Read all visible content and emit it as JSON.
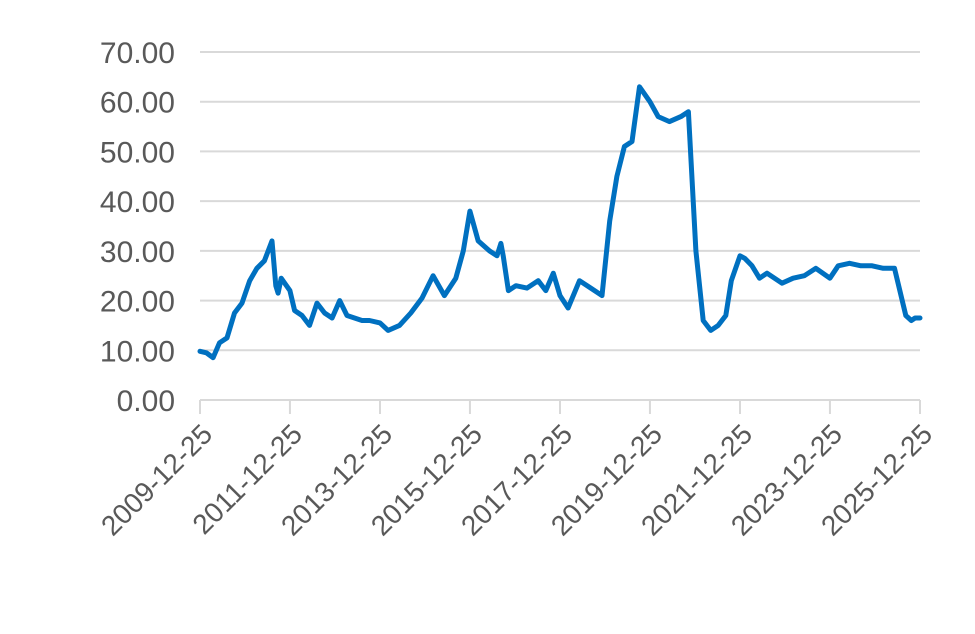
{
  "chart_data": {
    "type": "line",
    "title": "",
    "xlabel": "",
    "ylabel": "",
    "x_tick_labels": [
      "2009-12-25",
      "2011-12-25",
      "2013-12-25",
      "2015-12-25",
      "2017-12-25",
      "2019-12-25",
      "2021-12-25",
      "2023-12-25",
      "2025-12-25"
    ],
    "y_tick_labels": [
      "0.00",
      "10.00",
      "20.00",
      "30.00",
      "40.00",
      "50.00",
      "60.00",
      "70.00"
    ],
    "ylim": [
      0,
      70
    ],
    "xlim": [
      "2009-12-25",
      "2025-12-25"
    ],
    "grid": "horizontal",
    "legend": "none",
    "colors": {
      "series": "#0070c0",
      "grid": "#d9d9d9",
      "tick_text": "#595959"
    },
    "series": [
      {
        "x": [
          "2009-12-25",
          "2010-02-15",
          "2010-04-10",
          "2010-06-01",
          "2010-08-01",
          "2010-10-01",
          "2010-12-01",
          "2011-02-01",
          "2011-04-01",
          "2011-06-01",
          "2011-08-01",
          "2011-09-01",
          "2011-09-20",
          "2011-10-15",
          "2011-12-25",
          "2012-02-01",
          "2012-04-01",
          "2012-06-01",
          "2012-08-01",
          "2012-10-01",
          "2012-12-01",
          "2013-02-01",
          "2013-04-01",
          "2013-06-01",
          "2013-08-01",
          "2013-10-01",
          "2013-12-25",
          "2014-03-01",
          "2014-06-01",
          "2014-09-01",
          "2014-12-01",
          "2015-03-01",
          "2015-06-01",
          "2015-09-01",
          "2015-11-01",
          "2015-12-25",
          "2016-03-01",
          "2016-06-01",
          "2016-08-01",
          "2016-09-01",
          "2016-09-20",
          "2016-11-01",
          "2017-01-01",
          "2017-04-01",
          "2017-07-01",
          "2017-09-01",
          "2017-11-01",
          "2017-12-25",
          "2018-03-01",
          "2018-06-01",
          "2018-09-01",
          "2018-12-01",
          "2019-02-01",
          "2019-04-01",
          "2019-06-01",
          "2019-08-01",
          "2019-10-01",
          "2019-12-25",
          "2020-03-01",
          "2020-06-01",
          "2020-09-01",
          "2020-11-01",
          "2021-01-01",
          "2021-03-01",
          "2021-05-01",
          "2021-07-01",
          "2021-09-01",
          "2021-10-15",
          "2021-12-25",
          "2022-02-01",
          "2022-04-01",
          "2022-06-01",
          "2022-08-01",
          "2022-10-01",
          "2022-12-01",
          "2023-03-01",
          "2023-06-01",
          "2023-09-01",
          "2023-12-25",
          "2024-03-01",
          "2024-06-01",
          "2024-09-01",
          "2024-12-01",
          "2025-03-01",
          "2025-06-01",
          "2025-09-01",
          "2025-10-15",
          "2025-11-15",
          "2025-12-25"
        ],
        "y": [
          9.8,
          9.5,
          8.5,
          11.5,
          12.5,
          17.5,
          19.5,
          24,
          26.5,
          28,
          32,
          23,
          21.5,
          24.5,
          22,
          18,
          17,
          15,
          19.5,
          17.5,
          16.5,
          20,
          17,
          16.5,
          16,
          16,
          15.5,
          14,
          15,
          17.5,
          20.5,
          25,
          21,
          24.5,
          30,
          38,
          32,
          30,
          29,
          31.5,
          29,
          22,
          23,
          22.5,
          24,
          22,
          25.5,
          21,
          18.5,
          24,
          22.5,
          21,
          36,
          45,
          51,
          52,
          63,
          60,
          57,
          56,
          57,
          58,
          30,
          16,
          14,
          15,
          17,
          24,
          29,
          28.5,
          27,
          24.5,
          25.5,
          24.5,
          23.5,
          24.5,
          25,
          26.5,
          24.5,
          27,
          27.5,
          27,
          27,
          26.5,
          26.5,
          17,
          16,
          16.5,
          16.5
        ]
      }
    ]
  }
}
